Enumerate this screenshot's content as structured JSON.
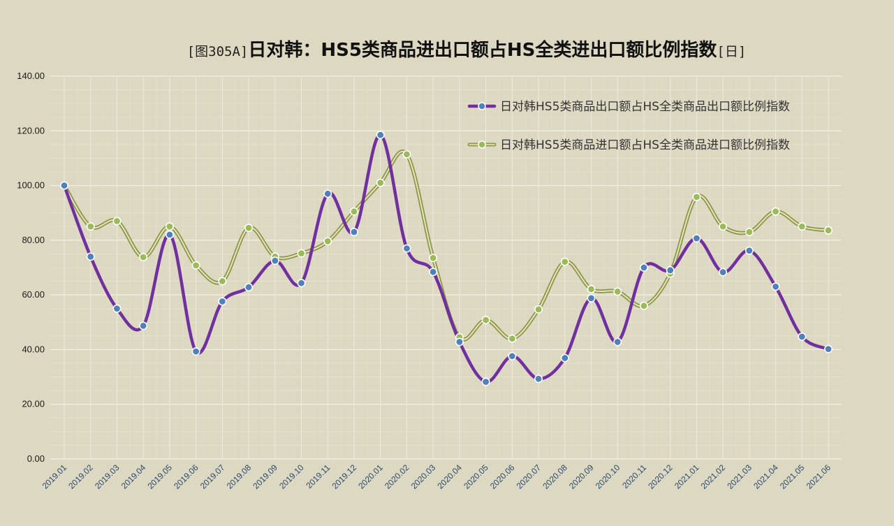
{
  "chart_data": {
    "type": "line",
    "title_prefix": "[图305A]",
    "title": "日对韩：HS5类商品进出口额占HS全类进出口额比例指数",
    "title_suffix": "[日]",
    "xlabel": "",
    "ylabel": "",
    "ylim": [
      0,
      140
    ],
    "y_ticks": [
      "0.00",
      "20.00",
      "40.00",
      "60.00",
      "80.00",
      "100.00",
      "120.00",
      "140.00"
    ],
    "categories": [
      "2019.01",
      "2019.02",
      "2019.03",
      "2019.04",
      "2019.05",
      "2019.06",
      "2019.07",
      "2019.08",
      "2019.09",
      "2019.10",
      "2019.11",
      "2019.12",
      "2020.01",
      "2020.02",
      "2020.03",
      "2020.04",
      "2020.05",
      "2020.06",
      "2020.07",
      "2020.08",
      "2020.09",
      "2020.10",
      "2020.11",
      "2020.12",
      "2021.01",
      "2021.02",
      "2021.03",
      "2021.04",
      "2021.05",
      "2021.06"
    ],
    "grid": true,
    "legend_position": "top-right",
    "series": [
      {
        "name": "日对韩HS5类商品出口额占HS全类商品出口额比例指数",
        "color": "#7030a0",
        "marker_color": "#4f81bd",
        "style": "solid",
        "values": [
          100,
          74,
          55,
          48.7,
          82,
          39.3,
          57.6,
          62.8,
          72.5,
          64.3,
          97,
          83,
          118.5,
          77,
          68.4,
          42.8,
          28.2,
          37.6,
          29.3,
          36.9,
          58.8,
          42.8,
          70,
          69,
          80.7,
          68.3,
          76.2,
          63,
          44.7,
          40.2
        ]
      },
      {
        "name": "日对韩HS5类商品进口额占HS全类商品进口额比例指数",
        "color": "#8a9a4a",
        "marker_color": "#9bbb59",
        "style": "double",
        "values": [
          100,
          85,
          87,
          73.8,
          85,
          70.8,
          65,
          84.5,
          74,
          75.2,
          79.6,
          90.5,
          101,
          111.4,
          73.5,
          44.5,
          50.8,
          44,
          54.7,
          72.1,
          62.1,
          61.2,
          56,
          67.8,
          95.8,
          85,
          83,
          90.5,
          85,
          83.6
        ]
      }
    ]
  }
}
